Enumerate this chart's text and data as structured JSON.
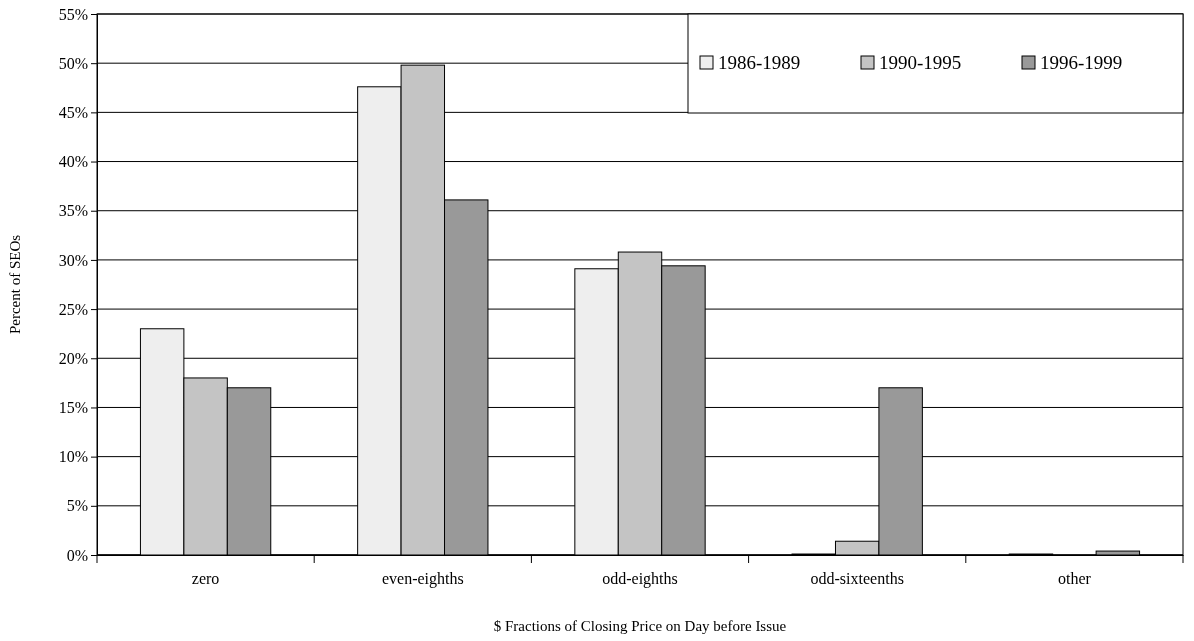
{
  "chart_data": {
    "type": "bar",
    "xlabel": "$ Fractions of Closing Price on Day before Issue",
    "ylabel": "Percent of SEOs",
    "categories": [
      "zero",
      "even-eighths",
      "odd-eighths",
      "odd-sixteenths",
      "other"
    ],
    "series": [
      {
        "name": "1986-1989",
        "color": "#eeeeee",
        "values": [
          23,
          47.6,
          29.1,
          0.1,
          0.1
        ]
      },
      {
        "name": "1990-1995",
        "color": "#c4c4c4",
        "values": [
          18,
          49.8,
          30.8,
          1.4,
          0
        ]
      },
      {
        "name": "1996-1999",
        "color": "#999999",
        "values": [
          17,
          36.1,
          29.4,
          17,
          0.4
        ]
      }
    ],
    "ylim": [
      0,
      55
    ],
    "yticks": [
      {
        "value": 0,
        "label": "0%"
      },
      {
        "value": 5,
        "label": "5%"
      },
      {
        "value": 10,
        "label": "10%"
      },
      {
        "value": 15,
        "label": "15%"
      },
      {
        "value": 20,
        "label": "20%"
      },
      {
        "value": 25,
        "label": "25%"
      },
      {
        "value": 30,
        "label": "30%"
      },
      {
        "value": 35,
        "label": "35%"
      },
      {
        "value": 40,
        "label": "40%"
      },
      {
        "value": 45,
        "label": "45%"
      },
      {
        "value": 50,
        "label": "50%"
      },
      {
        "value": 55,
        "label": "55%"
      }
    ],
    "grid": "y",
    "legend": "top right"
  }
}
